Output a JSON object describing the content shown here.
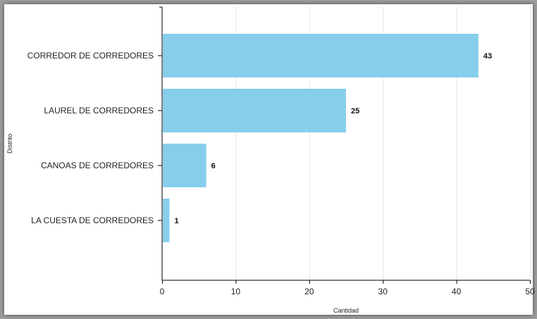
{
  "chart_data": {
    "type": "bar",
    "orientation": "horizontal",
    "categories": [
      "CORREDOR DE CORREDORES",
      "LAUREL DE CORREDORES",
      "CANOAS DE CORREDORES",
      "LA CUESTA DE CORREDORES"
    ],
    "values": [
      43,
      25,
      6,
      1
    ],
    "value_labels": [
      "43",
      "25",
      "6",
      "1"
    ],
    "xlabel": "Cantidad",
    "ylabel": "Distrito",
    "xlim": [
      0,
      50
    ],
    "x_ticks": [
      "0",
      "10",
      "20",
      "30",
      "40",
      "50"
    ],
    "grid": "vertical",
    "bar_color": "#87ceeb"
  }
}
